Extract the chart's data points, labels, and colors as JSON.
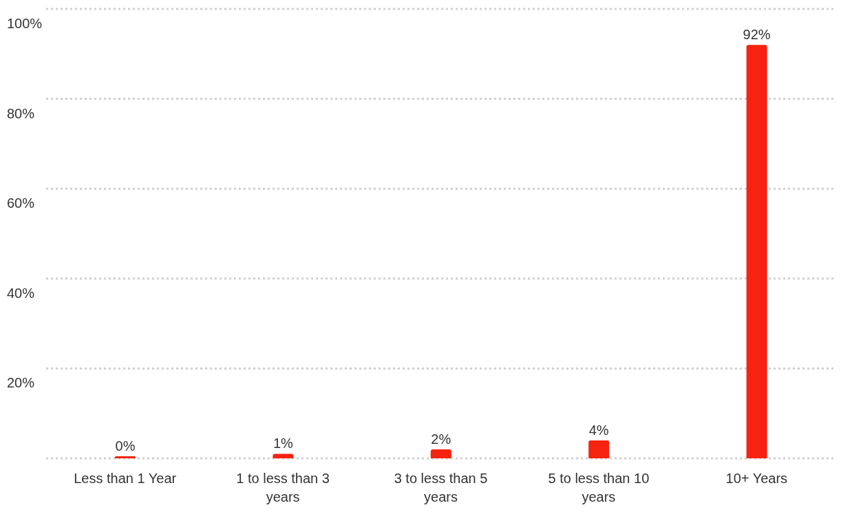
{
  "chart_data": {
    "type": "bar",
    "categories": [
      "Less than 1 Year",
      "1 to less than 3 years",
      "3 to less than 5 years",
      "5 to less than 10 years",
      "10+ Years"
    ],
    "values": [
      0,
      1,
      2,
      4,
      92
    ],
    "value_labels": [
      "0%",
      "1%",
      "2%",
      "4%",
      "92%"
    ],
    "color": "#f5230f",
    "ylim": [
      0,
      100
    ],
    "yticks": [
      {
        "value": 0,
        "label": null
      },
      {
        "value": 20,
        "label": "20%"
      },
      {
        "value": 40,
        "label": "40%"
      },
      {
        "value": 60,
        "label": "60%"
      },
      {
        "value": 80,
        "label": "80%"
      },
      {
        "value": 100,
        "label": "100%"
      }
    ],
    "grid": "y"
  }
}
